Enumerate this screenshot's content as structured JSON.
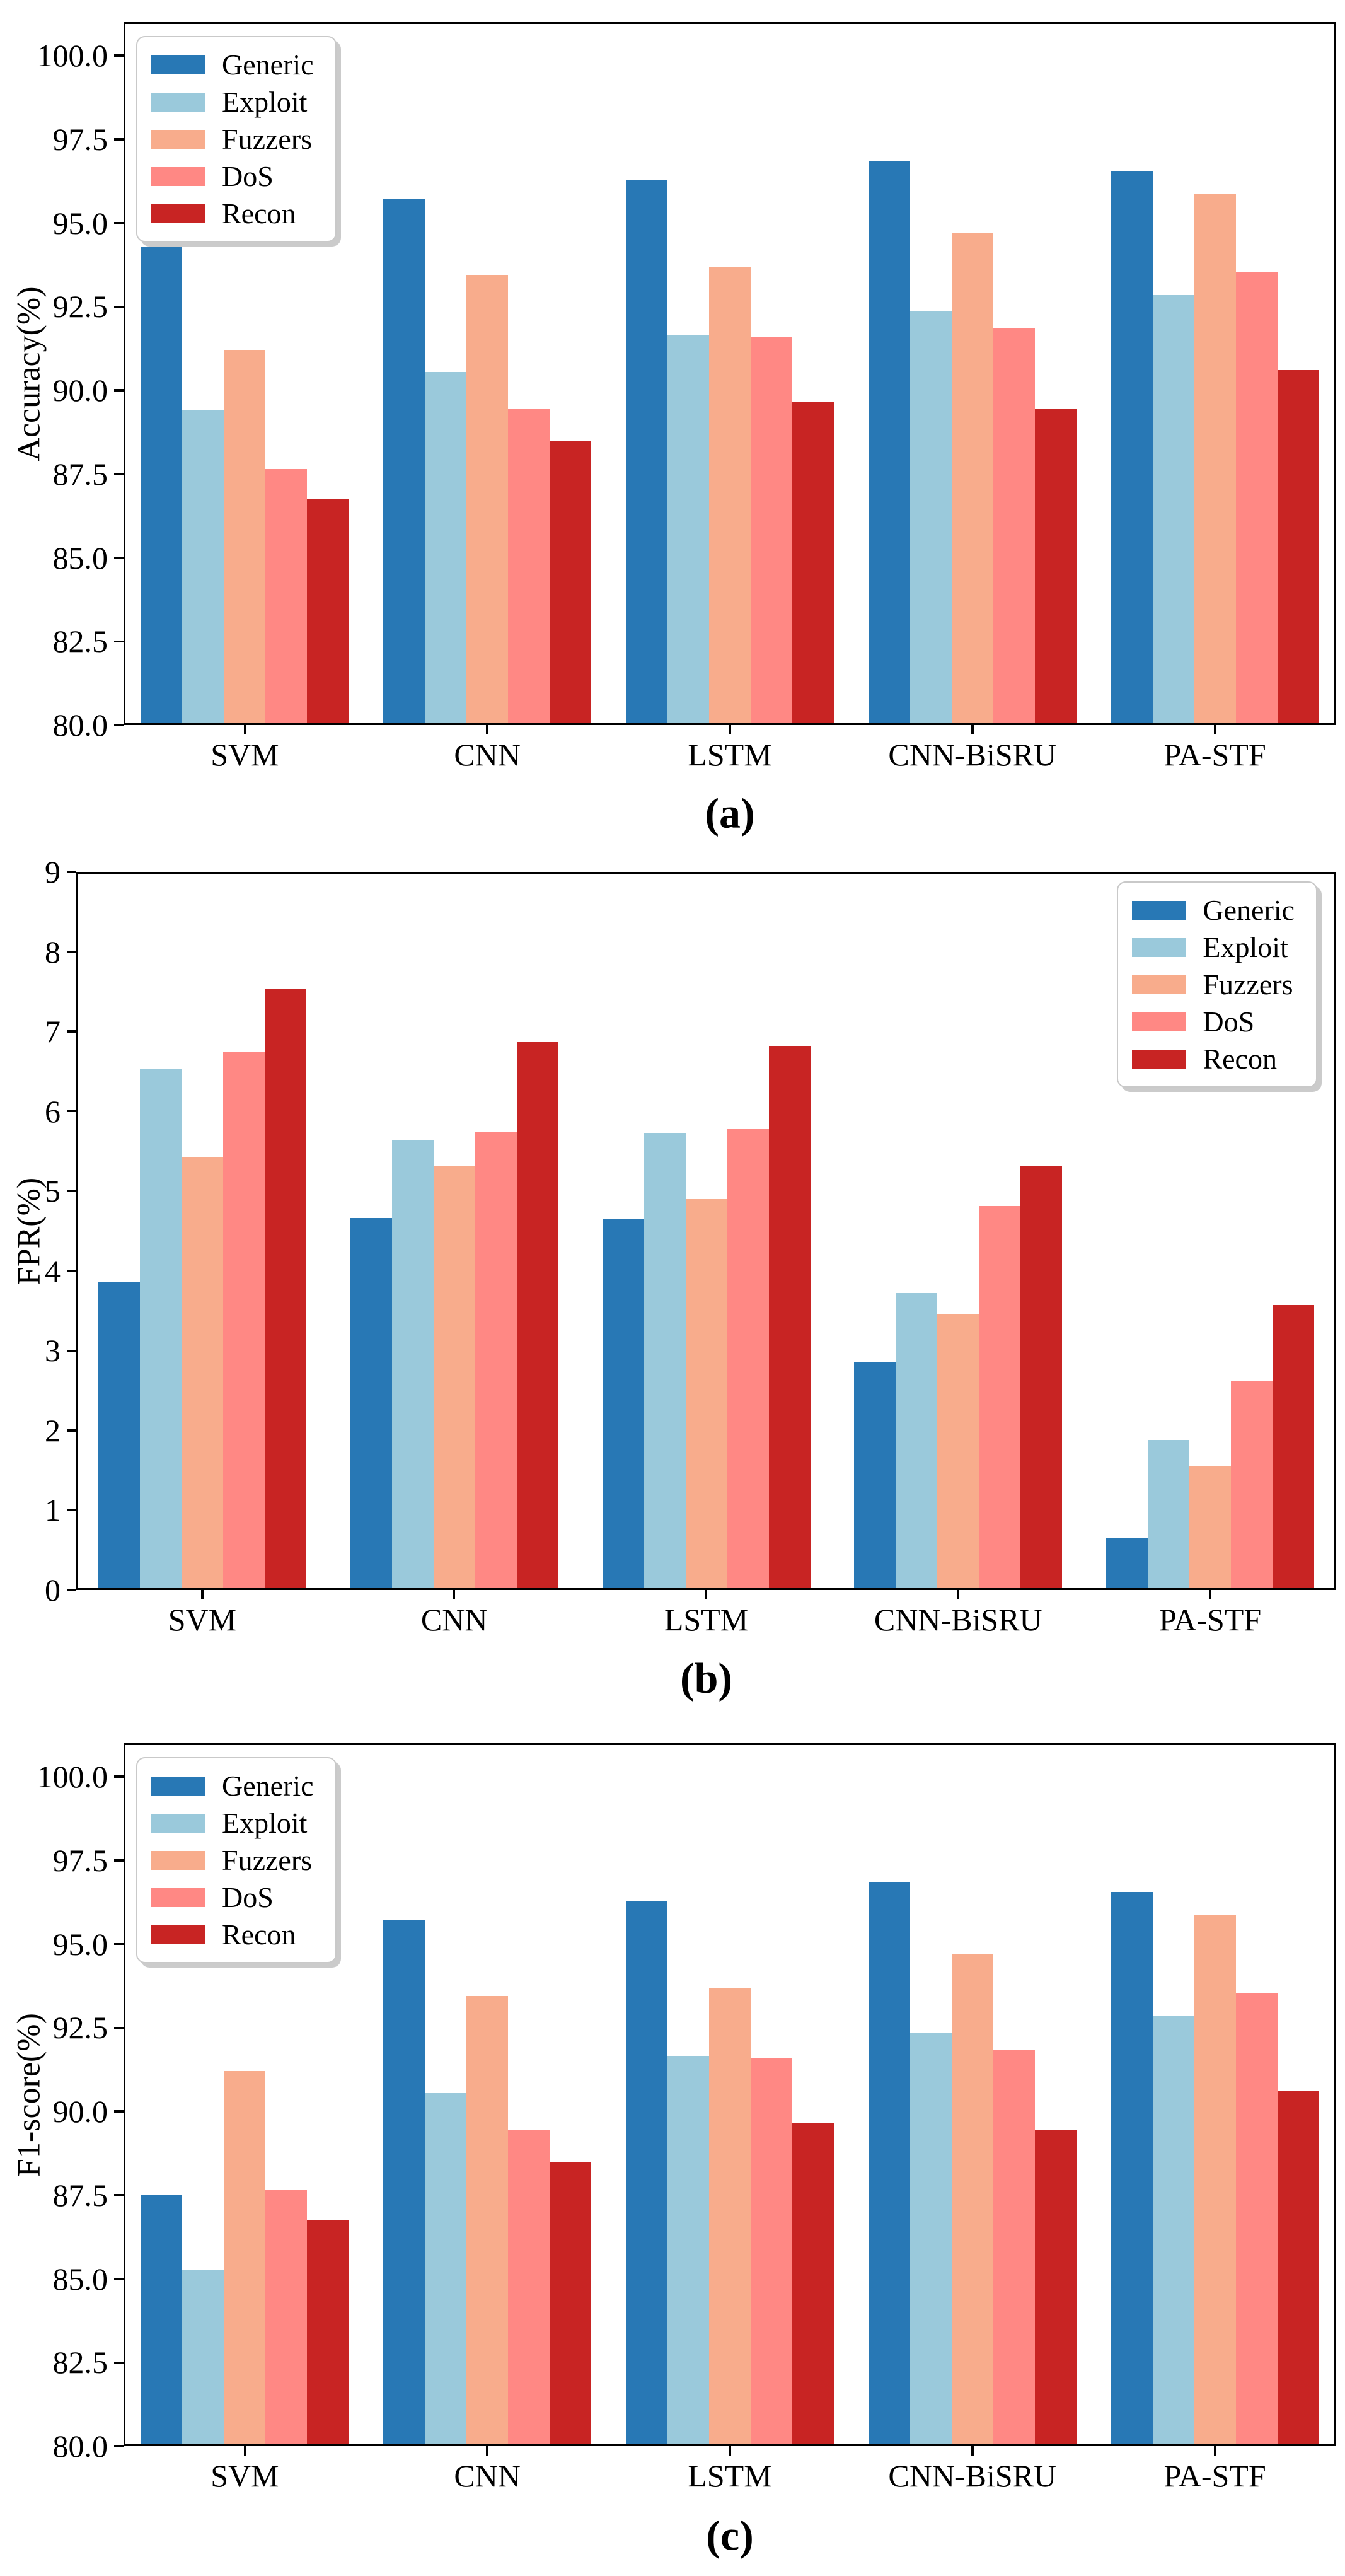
{
  "figure": {
    "panel_count": 3,
    "x_axis_models": [
      "SVM",
      "CNN",
      "LSTM",
      "CNN-BiSRU",
      "PA-STF"
    ],
    "attack_classes": [
      "Generic",
      "Exploit",
      "Fuzzers",
      "DoS",
      "Recon"
    ],
    "colors": {
      "generic": "#2878b5",
      "exploit": "#9ac9db",
      "fuzzers": "#f8ac8c",
      "dos": "#ff8884",
      "recon": "#c82423",
      "axis": "#000000",
      "background": "#ffffff",
      "legend_border": "#c9c9c9"
    }
  },
  "chart_data": [
    {
      "panel": "a",
      "type": "bar",
      "title": "",
      "caption": "(a)",
      "xlabel": "",
      "ylabel": "Accuracy(%)",
      "categories": [
        "SVM",
        "CNN",
        "LSTM",
        "CNN-BiSRU",
        "PA-STF"
      ],
      "ylim": [
        80,
        101
      ],
      "yticks": [
        80.0,
        82.5,
        85.0,
        87.5,
        90.0,
        92.5,
        95.0,
        97.5,
        100.0
      ],
      "ytick_decimals": 1,
      "grid": false,
      "legend_position": "upper-left",
      "series": [
        {
          "name": "Generic",
          "color": "#2878b5",
          "values": [
            94.3,
            95.7,
            96.3,
            96.85,
            96.55
          ]
        },
        {
          "name": "Exploit",
          "color": "#9ac9db",
          "values": [
            89.4,
            90.55,
            91.65,
            92.35,
            92.85
          ]
        },
        {
          "name": "Fuzzers",
          "color": "#f8ac8c",
          "values": [
            91.2,
            93.45,
            93.7,
            94.7,
            95.85
          ]
        },
        {
          "name": "DoS",
          "color": "#ff8884",
          "values": [
            87.65,
            89.45,
            91.6,
            91.85,
            93.55
          ]
        },
        {
          "name": "Recon",
          "color": "#c82423",
          "values": [
            86.75,
            88.5,
            89.65,
            89.45,
            90.6
          ]
        }
      ]
    },
    {
      "panel": "b",
      "type": "bar",
      "title": "",
      "caption": "(b)",
      "xlabel": "",
      "ylabel": "FPR(%)",
      "categories": [
        "SVM",
        "CNN",
        "LSTM",
        "CNN-BiSRU",
        "PA-STF"
      ],
      "ylim": [
        0,
        9
      ],
      "yticks": [
        0,
        1,
        2,
        3,
        4,
        5,
        6,
        7,
        8,
        9
      ],
      "ytick_decimals": 0,
      "grid": false,
      "legend_position": "upper-right",
      "series": [
        {
          "name": "Generic",
          "color": "#2878b5",
          "values": [
            3.86,
            4.66,
            4.65,
            2.86,
            0.65
          ]
        },
        {
          "name": "Exploit",
          "color": "#9ac9db",
          "values": [
            6.53,
            5.64,
            5.73,
            3.72,
            1.88
          ]
        },
        {
          "name": "Fuzzers",
          "color": "#f8ac8c",
          "values": [
            5.43,
            5.32,
            4.9,
            3.45,
            1.55
          ]
        },
        {
          "name": "DoS",
          "color": "#ff8884",
          "values": [
            6.74,
            5.74,
            5.78,
            4.81,
            2.62
          ]
        },
        {
          "name": "Recon",
          "color": "#c82423",
          "values": [
            7.54,
            6.87,
            6.82,
            5.31,
            3.57
          ]
        }
      ]
    },
    {
      "panel": "c",
      "type": "bar",
      "title": "",
      "caption": "(c)",
      "xlabel": "",
      "ylabel": "F1-score(%)",
      "categories": [
        "SVM",
        "CNN",
        "LSTM",
        "CNN-BiSRU",
        "PA-STF"
      ],
      "ylim": [
        80,
        101
      ],
      "yticks": [
        80.0,
        82.5,
        85.0,
        87.5,
        90.0,
        92.5,
        95.0,
        97.5,
        100.0
      ],
      "ytick_decimals": 1,
      "grid": false,
      "legend_position": "upper-left",
      "series": [
        {
          "name": "Generic",
          "color": "#2878b5",
          "values": [
            87.5,
            95.7,
            96.3,
            96.85,
            96.55
          ]
        },
        {
          "name": "Exploit",
          "color": "#9ac9db",
          "values": [
            85.25,
            90.55,
            91.65,
            92.35,
            92.85
          ]
        },
        {
          "name": "Fuzzers",
          "color": "#f8ac8c",
          "values": [
            91.2,
            93.45,
            93.7,
            94.7,
            95.85
          ]
        },
        {
          "name": "DoS",
          "color": "#ff8884",
          "values": [
            87.65,
            89.45,
            91.6,
            91.85,
            93.55
          ]
        },
        {
          "name": "Recon",
          "color": "#c82423",
          "values": [
            86.75,
            88.5,
            89.65,
            89.45,
            90.6
          ]
        }
      ]
    }
  ]
}
